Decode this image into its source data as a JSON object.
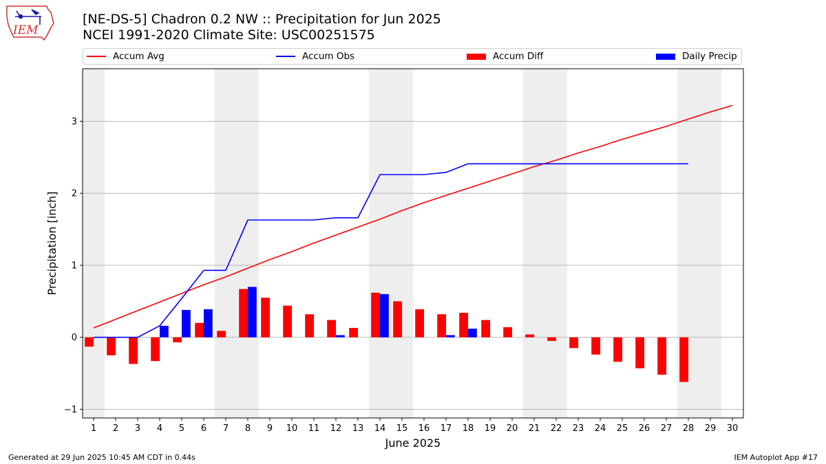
{
  "header": {
    "title_line1": "[NE-DS-5] Chadron 0.2 NW :: Precipitation for Jun 2025",
    "title_line2": "NCEI 1991-2020 Climate Site: USC00251575",
    "logo_text": "IEM"
  },
  "legend": {
    "items": [
      {
        "label": "Accum Avg",
        "kind": "line",
        "color": "#ff0000"
      },
      {
        "label": "Accum Obs",
        "kind": "line",
        "color": "#0000ff"
      },
      {
        "label": "Accum Diff",
        "kind": "bar",
        "color": "#ff0000"
      },
      {
        "label": "Daily Precip",
        "kind": "bar",
        "color": "#0000ff"
      }
    ]
  },
  "footer": {
    "left": "Generated at 29 Jun 2025 10:45 AM CDT in 0.44s",
    "right": "IEM Autoplot App #17"
  },
  "colors": {
    "avg": "#ff0000",
    "obs": "#0000ff",
    "weekend_shade": "#eeeeee",
    "grid": "#b0b0b0"
  },
  "chart_data": {
    "type": "bar",
    "title": "[NE-DS-5] Chadron 0.2 NW :: Precipitation for Jun 2025",
    "subtitle": "NCEI 1991-2020 Climate Site: USC00251575",
    "xlabel": "June 2025",
    "ylabel": "Precipitation [inch]",
    "xlim": [
      0.5,
      30.5
    ],
    "ylim": [
      -1.12,
      3.73
    ],
    "yticks": [
      -1,
      0,
      1,
      2,
      3
    ],
    "grid": "y",
    "legend_position": "top",
    "x": [
      1,
      2,
      3,
      4,
      5,
      6,
      7,
      8,
      9,
      10,
      11,
      12,
      13,
      14,
      15,
      16,
      17,
      18,
      19,
      20,
      21,
      22,
      23,
      24,
      25,
      26,
      27,
      28,
      29,
      30
    ],
    "shaded_days": [
      1,
      7,
      8,
      14,
      15,
      21,
      22,
      28,
      29
    ],
    "series": [
      {
        "name": "Accum Avg",
        "kind": "line",
        "color": "#ff0000",
        "values": [
          0.13,
          0.25,
          0.37,
          0.49,
          0.61,
          0.73,
          0.84,
          0.96,
          1.08,
          1.19,
          1.31,
          1.42,
          1.53,
          1.64,
          1.76,
          1.87,
          1.97,
          2.07,
          2.17,
          2.27,
          2.37,
          2.46,
          2.56,
          2.65,
          2.75,
          2.84,
          2.93,
          3.03,
          3.13,
          3.22
        ]
      },
      {
        "name": "Accum Obs",
        "kind": "line",
        "color": "#0000ff",
        "values": [
          0.0,
          0.0,
          0.0,
          0.16,
          0.54,
          0.93,
          0.93,
          1.63,
          1.63,
          1.63,
          1.63,
          1.66,
          1.66,
          2.26,
          2.26,
          2.26,
          2.29,
          2.41,
          2.41,
          2.41,
          2.41,
          2.41,
          2.41,
          2.41,
          2.41,
          2.41,
          2.41,
          2.41,
          null,
          null
        ]
      },
      {
        "name": "Accum Diff",
        "kind": "bar",
        "color": "#ff0000",
        "values": [
          -0.13,
          -0.25,
          -0.37,
          -0.33,
          -0.07,
          0.2,
          0.09,
          0.67,
          0.55,
          0.44,
          0.32,
          0.24,
          0.13,
          0.62,
          0.5,
          0.39,
          0.32,
          0.34,
          0.24,
          0.14,
          0.04,
          -0.05,
          -0.15,
          -0.24,
          -0.34,
          -0.43,
          -0.52,
          -0.62,
          null,
          null
        ]
      },
      {
        "name": "Daily Precip",
        "kind": "bar",
        "color": "#0000ff",
        "values": [
          0,
          0,
          0,
          0.16,
          0.38,
          0.39,
          0,
          0.7,
          0,
          0,
          0,
          0.03,
          0,
          0.6,
          0,
          0,
          0.03,
          0.12,
          0,
          0,
          0,
          0,
          0,
          0,
          0,
          0,
          0,
          0,
          null,
          null
        ]
      }
    ]
  }
}
